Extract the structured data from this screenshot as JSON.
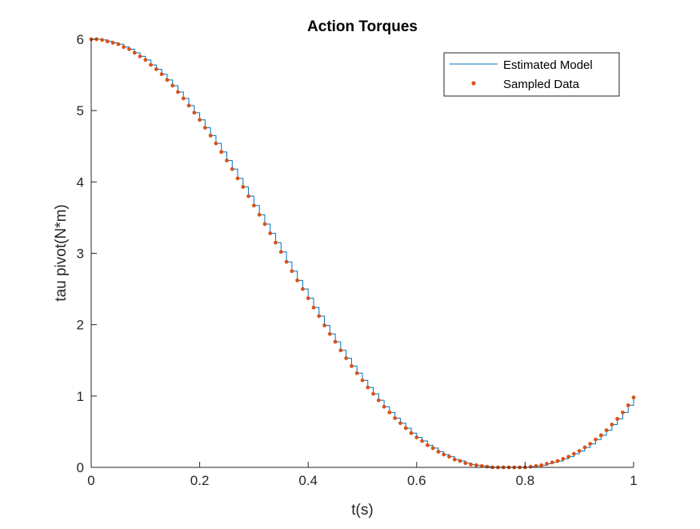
{
  "chart_data": {
    "type": "line",
    "title": "Action Torques",
    "xlabel": "t(s)",
    "ylabel": "tau pivot(N*m)",
    "xlim": [
      0,
      1
    ],
    "ylim": [
      0,
      6
    ],
    "xticks": [
      0,
      0.2,
      0.4,
      0.6,
      0.8,
      1
    ],
    "xtick_labels": [
      "0",
      "0.2",
      "0.4",
      "0.6",
      "0.8",
      "1"
    ],
    "yticks": [
      0,
      1,
      2,
      3,
      4,
      5,
      6
    ],
    "ytick_labels": [
      "0",
      "1",
      "2",
      "3",
      "4",
      "5",
      "6"
    ],
    "grid": false,
    "legend_position": "top-right",
    "series": [
      {
        "name": "Estimated Model",
        "style": "step",
        "color": "#0072BD",
        "x": [
          0,
          0.01,
          0.02,
          0.03,
          0.04,
          0.05,
          0.06,
          0.07,
          0.08,
          0.09,
          0.1,
          0.11,
          0.12,
          0.13,
          0.14,
          0.15,
          0.16,
          0.17,
          0.18,
          0.19,
          0.2,
          0.21,
          0.22,
          0.23,
          0.24,
          0.25,
          0.26,
          0.27,
          0.28,
          0.29,
          0.3,
          0.31,
          0.32,
          0.33,
          0.34,
          0.35,
          0.36,
          0.37,
          0.38,
          0.39,
          0.4,
          0.41,
          0.42,
          0.43,
          0.44,
          0.45,
          0.46,
          0.47,
          0.48,
          0.49,
          0.5,
          0.51,
          0.52,
          0.53,
          0.54,
          0.55,
          0.56,
          0.57,
          0.58,
          0.59,
          0.6,
          0.61,
          0.62,
          0.63,
          0.64,
          0.65,
          0.66,
          0.67,
          0.68,
          0.69,
          0.7,
          0.71,
          0.72,
          0.73,
          0.74,
          0.75,
          0.76,
          0.77,
          0.78,
          0.79,
          0.8,
          0.81,
          0.82,
          0.83,
          0.84,
          0.85,
          0.86,
          0.87,
          0.88,
          0.89,
          0.9,
          0.91,
          0.92,
          0.93,
          0.94,
          0.95,
          0.96,
          0.97,
          0.98,
          0.99,
          1.0
        ],
        "y": [
          6.0,
          6.0,
          5.99,
          5.97,
          5.95,
          5.93,
          5.89,
          5.86,
          5.81,
          5.76,
          5.71,
          5.64,
          5.58,
          5.51,
          5.43,
          5.35,
          5.26,
          5.17,
          5.07,
          4.97,
          4.87,
          4.76,
          4.65,
          4.54,
          4.42,
          4.3,
          4.18,
          4.05,
          3.93,
          3.8,
          3.67,
          3.54,
          3.41,
          3.28,
          3.15,
          3.02,
          2.88,
          2.75,
          2.62,
          2.5,
          2.37,
          2.24,
          2.12,
          1.99,
          1.87,
          1.76,
          1.64,
          1.53,
          1.42,
          1.32,
          1.22,
          1.12,
          1.03,
          0.94,
          0.85,
          0.77,
          0.69,
          0.62,
          0.55,
          0.48,
          0.42,
          0.37,
          0.31,
          0.27,
          0.22,
          0.18,
          0.15,
          0.11,
          0.09,
          0.06,
          0.04,
          0.03,
          0.02,
          0.01,
          0.0,
          0.0,
          0.0,
          0.0,
          0.0,
          0.0,
          0.0,
          0.01,
          0.02,
          0.03,
          0.05,
          0.07,
          0.09,
          0.12,
          0.15,
          0.19,
          0.23,
          0.28,
          0.33,
          0.39,
          0.45,
          0.52,
          0.6,
          0.68,
          0.77,
          0.87,
          0.98
        ]
      },
      {
        "name": "Sampled Data",
        "style": "points",
        "color": "#D95319",
        "x": [
          0,
          0.01,
          0.02,
          0.03,
          0.04,
          0.05,
          0.06,
          0.07,
          0.08,
          0.09,
          0.1,
          0.11,
          0.12,
          0.13,
          0.14,
          0.15,
          0.16,
          0.17,
          0.18,
          0.19,
          0.2,
          0.21,
          0.22,
          0.23,
          0.24,
          0.25,
          0.26,
          0.27,
          0.28,
          0.29,
          0.3,
          0.31,
          0.32,
          0.33,
          0.34,
          0.35,
          0.36,
          0.37,
          0.38,
          0.39,
          0.4,
          0.41,
          0.42,
          0.43,
          0.44,
          0.45,
          0.46,
          0.47,
          0.48,
          0.49,
          0.5,
          0.51,
          0.52,
          0.53,
          0.54,
          0.55,
          0.56,
          0.57,
          0.58,
          0.59,
          0.6,
          0.61,
          0.62,
          0.63,
          0.64,
          0.65,
          0.66,
          0.67,
          0.68,
          0.69,
          0.7,
          0.71,
          0.72,
          0.73,
          0.74,
          0.75,
          0.76,
          0.77,
          0.78,
          0.79,
          0.8,
          0.81,
          0.82,
          0.83,
          0.84,
          0.85,
          0.86,
          0.87,
          0.88,
          0.89,
          0.9,
          0.91,
          0.92,
          0.93,
          0.94,
          0.95,
          0.96,
          0.97,
          0.98,
          0.99,
          1.0
        ],
        "y": [
          6.0,
          6.0,
          5.99,
          5.97,
          5.95,
          5.93,
          5.89,
          5.86,
          5.81,
          5.76,
          5.71,
          5.64,
          5.58,
          5.51,
          5.43,
          5.35,
          5.26,
          5.17,
          5.07,
          4.97,
          4.87,
          4.76,
          4.65,
          4.54,
          4.42,
          4.3,
          4.18,
          4.05,
          3.93,
          3.8,
          3.67,
          3.54,
          3.41,
          3.28,
          3.15,
          3.02,
          2.88,
          2.75,
          2.62,
          2.5,
          2.37,
          2.24,
          2.12,
          1.99,
          1.87,
          1.76,
          1.64,
          1.53,
          1.42,
          1.32,
          1.22,
          1.12,
          1.03,
          0.94,
          0.85,
          0.77,
          0.69,
          0.62,
          0.55,
          0.48,
          0.42,
          0.37,
          0.31,
          0.27,
          0.22,
          0.18,
          0.15,
          0.11,
          0.09,
          0.06,
          0.04,
          0.03,
          0.02,
          0.01,
          0.0,
          0.0,
          0.0,
          0.0,
          0.0,
          0.0,
          0.0,
          0.01,
          0.02,
          0.03,
          0.05,
          0.07,
          0.09,
          0.12,
          0.15,
          0.19,
          0.23,
          0.28,
          0.33,
          0.39,
          0.45,
          0.52,
          0.6,
          0.68,
          0.77,
          0.87,
          0.98
        ]
      }
    ]
  }
}
